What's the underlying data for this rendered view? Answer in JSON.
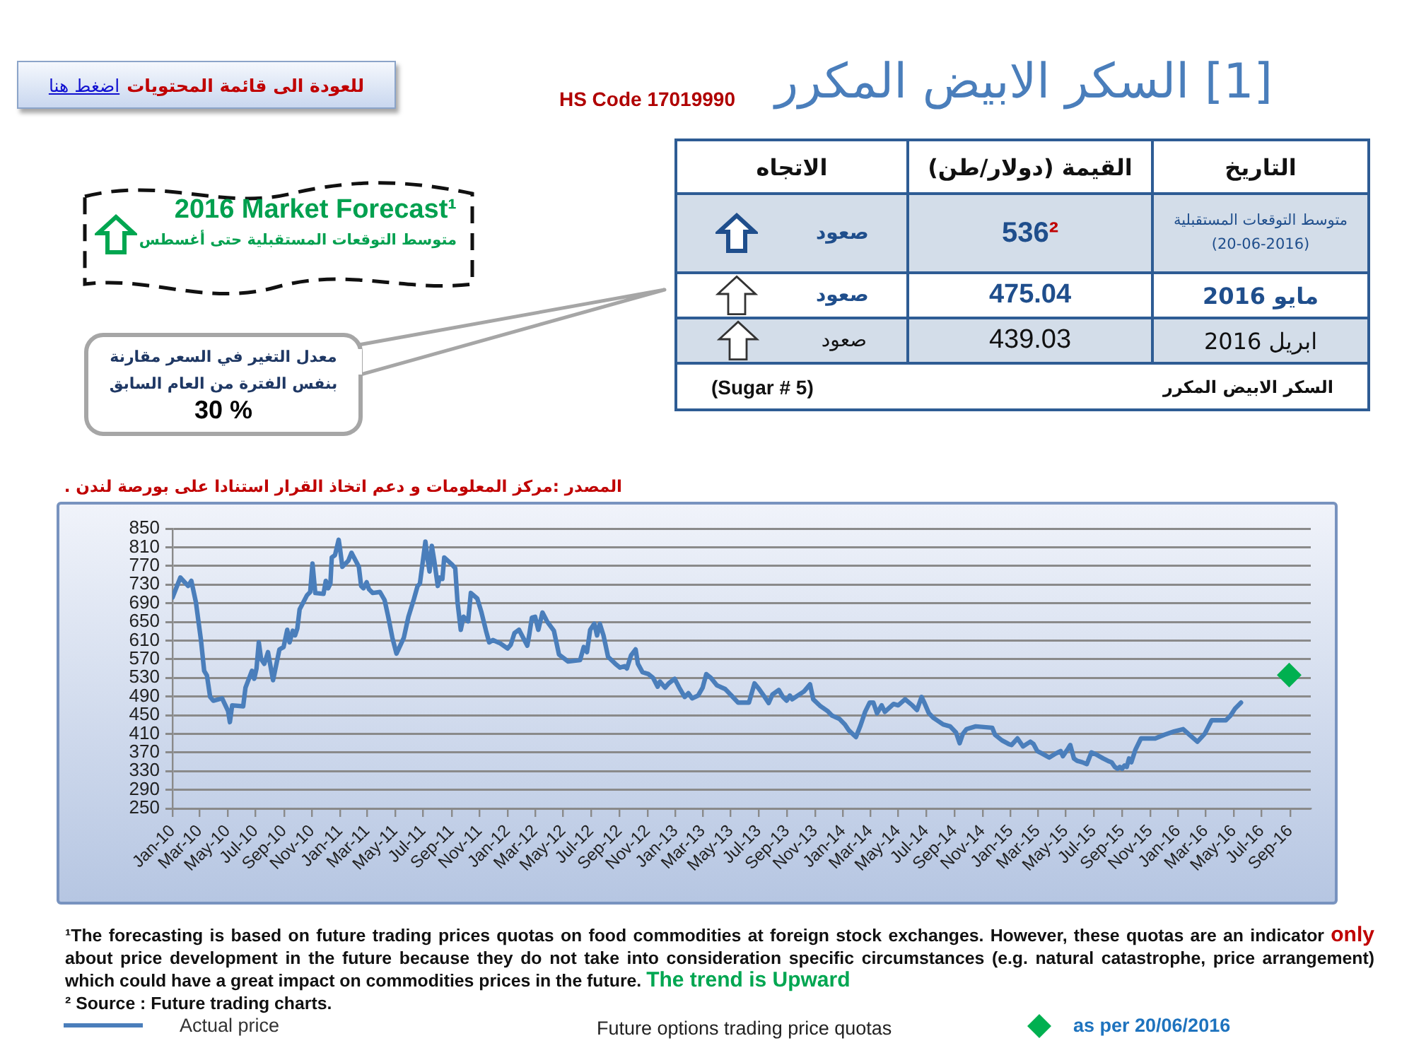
{
  "chart_data": {
    "type": "line",
    "title": "[1] السكر الابيض المكرر",
    "subtitle": "HS Code 17019990",
    "annotations": [
      "للعودة الى قائمة المحتويات",
      "اضغط هنا",
      "2016 Market Forecast¹",
      "متوسط التوقعات المستقبلية حتى أغسطس",
      "معدل التغير في السعر مقارنة\nبنفس الفترة من العام السابق",
      "30 %",
      "التاريخ",
      "القيمة (دولار/طن)",
      "الاتجاه",
      "متوسط التوقعات المستقبلية\n(20-06-2016)",
      "536²",
      "صعود",
      "مايو 2016",
      "475.04",
      "صعود",
      "ابريل 2016",
      "439.03",
      "صعود",
      "السكر الابيض المكرر",
      "(Sugar # 5)",
      "المصدر :مركز المعلومات و دعم اتخاذ القرار استنادا على بورصة لندن .",
      "¹The forecasting is based on future trading prices quotas on food commodities at foreign stock exchanges. However, these quotas are an indicator",
      "only",
      "about price development in the future because they do not take into consideration specific circumstances (e.g. natural catastrophe, price arrangement)",
      "which could have a great impact on commodities prices in the future.",
      "The trend is Upward",
      "² Source : Future trading charts.",
      "Future options trading price quotas"
    ],
    "series": [
      {
        "name": "Actual price",
        "color": "#4a7ebb",
        "x": [
          "2010-01-01",
          "2010-01-18",
          "2010-02-04",
          "2010-02-11",
          "2010-02-21",
          "2010-03-04",
          "2010-03-11",
          "2010-03-17",
          "2010-03-24",
          "2010-03-31",
          "2010-04-19",
          "2010-05-02",
          "2010-05-06",
          "2010-05-11",
          "2010-06-04",
          "2010-06-09",
          "2010-06-23",
          "2010-06-28",
          "2010-07-03",
          "2010-07-08",
          "2010-07-13",
          "2010-07-20",
          "2010-07-28",
          "2010-08-08",
          "2010-08-22",
          "2010-08-31",
          "2010-09-08",
          "2010-09-13",
          "2010-09-20",
          "2010-09-25",
          "2010-09-30",
          "2010-10-05",
          "2010-10-21",
          "2010-10-28",
          "2010-11-02",
          "2010-11-08",
          "2010-11-26",
          "2010-12-01",
          "2010-12-06",
          "2010-12-11",
          "2010-12-14",
          "2010-12-21",
          "2010-12-29",
          "2011-01-01",
          "2011-01-06",
          "2011-01-19",
          "2011-01-26",
          "2011-02-11",
          "2011-02-16",
          "2011-02-21",
          "2011-02-28",
          "2011-03-05",
          "2011-03-13",
          "2011-03-29",
          "2011-04-08",
          "2011-04-16",
          "2011-04-25",
          "2011-05-04",
          "2011-05-20",
          "2011-05-30",
          "2011-06-11",
          "2011-06-19",
          "2011-06-24",
          "2011-07-06",
          "2011-07-11",
          "2011-07-15",
          "2011-07-20",
          "2011-07-25",
          "2011-08-02",
          "2011-08-06",
          "2011-08-12",
          "2011-08-16",
          "2011-09-02",
          "2011-09-09",
          "2011-09-14",
          "2011-09-21",
          "2011-09-27",
          "2011-10-07",
          "2011-10-13",
          "2011-10-27",
          "2011-11-05",
          "2011-11-15",
          "2011-11-22",
          "2011-11-30",
          "2011-12-16",
          "2012-01-01",
          "2012-01-08",
          "2012-01-16",
          "2012-01-26",
          "2012-02-13",
          "2012-02-17",
          "2012-02-23",
          "2012-03-01",
          "2012-03-08",
          "2012-03-17",
          "2012-03-27",
          "2012-04-11",
          "2012-04-22",
          "2012-05-12",
          "2012-06-07",
          "2012-06-15",
          "2012-06-22",
          "2012-06-29",
          "2012-07-08",
          "2012-07-14",
          "2012-07-20",
          "2012-07-28",
          "2012-08-07",
          "2012-08-23",
          "2012-09-02",
          "2012-09-12",
          "2012-09-17",
          "2012-09-26",
          "2012-10-06",
          "2012-10-11",
          "2012-10-21",
          "2012-11-03",
          "2012-11-13",
          "2012-11-23",
          "2012-11-28",
          "2012-12-09",
          "2012-12-17",
          "2012-12-30",
          "2013-01-09",
          "2013-01-21",
          "2013-01-29",
          "2013-02-06",
          "2013-02-19",
          "2013-03-01",
          "2013-03-09",
          "2013-03-19",
          "2013-04-01",
          "2013-04-19",
          "2013-05-01",
          "2013-05-17",
          "2013-06-10",
          "2013-06-22",
          "2013-07-02",
          "2013-07-12",
          "2013-07-23",
          "2013-07-31",
          "2013-08-14",
          "2013-08-23",
          "2013-08-31",
          "2013-09-07",
          "2013-09-12",
          "2013-09-24",
          "2013-10-08",
          "2013-10-21",
          "2013-10-28",
          "2013-11-13",
          "2013-11-28",
          "2013-12-08",
          "2013-12-24",
          "2014-01-05",
          "2014-01-13",
          "2014-01-29",
          "2014-02-08",
          "2014-02-18",
          "2014-02-28",
          "2014-03-08",
          "2014-03-16",
          "2014-03-26",
          "2014-04-02",
          "2014-04-21",
          "2014-05-01",
          "2014-05-16",
          "2014-06-01",
          "2014-06-11",
          "2014-06-21",
          "2014-06-26",
          "2014-07-07",
          "2014-07-17",
          "2014-08-07",
          "2014-08-22",
          "2014-09-04",
          "2014-09-12",
          "2014-09-19",
          "2014-09-27",
          "2014-10-17",
          "2014-11-22",
          "2014-11-28",
          "2014-12-13",
          "2014-12-28",
          "2015-01-03",
          "2015-01-16",
          "2015-01-28",
          "2015-02-05",
          "2015-02-13",
          "2015-02-20",
          "2015-02-28",
          "2015-03-10",
          "2015-03-26",
          "2015-04-10",
          "2015-04-20",
          "2015-04-25",
          "2015-05-06",
          "2015-05-11",
          "2015-05-19",
          "2015-05-26",
          "2015-06-06",
          "2015-06-16",
          "2015-06-26",
          "2015-07-06",
          "2015-07-22",
          "2015-08-01",
          "2015-08-09",
          "2015-08-16",
          "2015-08-22",
          "2015-08-27",
          "2015-09-01",
          "2015-09-06",
          "2015-09-11",
          "2015-09-16",
          "2015-09-21",
          "2015-09-30",
          "2015-10-12",
          "2015-11-12",
          "2015-12-02",
          "2015-12-23",
          "2016-01-12",
          "2016-01-28",
          "2016-02-12",
          "2016-02-28",
          "2016-03-14",
          "2016-04-14",
          "2016-04-24",
          "2016-05-04",
          "2016-05-17"
        ],
        "values": [
          702,
          745,
          727,
          738,
          692,
          611,
          545,
          535,
          489,
          481,
          486,
          459,
          435,
          471,
          469,
          509,
          545,
          528,
          550,
          606,
          570,
          560,
          585,
          525,
          591,
          596,
          633,
          606,
          631,
          621,
          636,
          677,
          707,
          714,
          775,
          712,
          710,
          738,
          722,
          732,
          788,
          793,
          826,
          807,
          768,
          781,
          798,
          768,
          727,
          722,
          735,
          720,
          712,
          714,
          697,
          661,
          616,
          582,
          616,
          661,
          699,
          727,
          732,
          822,
          783,
          758,
          813,
          783,
          727,
          745,
          742,
          788,
          773,
          765,
          692,
          633,
          661,
          651,
          712,
          700,
          671,
          631,
          606,
          611,
          604,
          593,
          601,
          626,
          633,
          599,
          621,
          659,
          661,
          633,
          670,
          651,
          631,
          580,
          565,
          568,
          596,
          585,
          633,
          646,
          621,
          646,
          621,
          575,
          560,
          552,
          555,
          550,
          578,
          591,
          560,
          542,
          538,
          530,
          511,
          522,
          509,
          518,
          528,
          509,
          489,
          497,
          486,
          492,
          509,
          538,
          530,
          514,
          506,
          494,
          477,
          477,
          518,
          506,
          492,
          476,
          494,
          504,
          489,
          481,
          492,
          484,
          492,
          501,
          516,
          484,
          469,
          459,
          449,
          442,
          430,
          418,
          403,
          428,
          457,
          477,
          477,
          454,
          471,
          457,
          474,
          471,
          484,
          471,
          461,
          489,
          479,
          454,
          444,
          430,
          426,
          413,
          390,
          410,
          420,
          426,
          423,
          408,
          396,
          388,
          386,
          400,
          383,
          388,
          393,
          388,
          373,
          368,
          359,
          368,
          373,
          362,
          378,
          386,
          357,
          352,
          349,
          345,
          370,
          366,
          357,
          352,
          349,
          339,
          335,
          339,
          335,
          342,
          339,
          357,
          349,
          376,
          400,
          400,
          408,
          415,
          420,
          406,
          393,
          410,
          439,
          439,
          449,
          464,
          477
        ]
      },
      {
        "name": "as per 20/06/2016",
        "type": "scatter",
        "color": "#00b050",
        "marker": "diamond",
        "x": [
          "2016-08-30"
        ],
        "values": [
          536
        ]
      }
    ],
    "xlim": [
      "2010-01-01",
      "2016-10-16"
    ],
    "xticks": [
      {
        "value": "2010-01-01",
        "label": "Jan-10"
      },
      {
        "value": "2010-03-01",
        "label": "Mar-10"
      },
      {
        "value": "2010-05-01",
        "label": "May-10"
      },
      {
        "value": "2010-07-01",
        "label": "Jul-10"
      },
      {
        "value": "2010-09-01",
        "label": "Sep-10"
      },
      {
        "value": "2010-11-01",
        "label": "Nov-10"
      },
      {
        "value": "2011-01-01",
        "label": "Jan-11"
      },
      {
        "value": "2011-03-01",
        "label": "Mar-11"
      },
      {
        "value": "2011-05-01",
        "label": "May-11"
      },
      {
        "value": "2011-07-01",
        "label": "Jul-11"
      },
      {
        "value": "2011-09-01",
        "label": "Sep-11"
      },
      {
        "value": "2011-11-01",
        "label": "Nov-11"
      },
      {
        "value": "2012-01-01",
        "label": "Jan-12"
      },
      {
        "value": "2012-03-01",
        "label": "Mar-12"
      },
      {
        "value": "2012-05-01",
        "label": "May-12"
      },
      {
        "value": "2012-07-01",
        "label": "Jul-12"
      },
      {
        "value": "2012-09-01",
        "label": "Sep-12"
      },
      {
        "value": "2012-11-01",
        "label": "Nov-12"
      },
      {
        "value": "2013-01-01",
        "label": "Jan-13"
      },
      {
        "value": "2013-03-01",
        "label": "Mar-13"
      },
      {
        "value": "2013-05-01",
        "label": "May-13"
      },
      {
        "value": "2013-07-01",
        "label": "Jul-13"
      },
      {
        "value": "2013-09-01",
        "label": "Sep-13"
      },
      {
        "value": "2013-11-01",
        "label": "Nov-13"
      },
      {
        "value": "2014-01-01",
        "label": "Jan-14"
      },
      {
        "value": "2014-03-01",
        "label": "Mar-14"
      },
      {
        "value": "2014-05-01",
        "label": "May-14"
      },
      {
        "value": "2014-07-01",
        "label": "Jul-14"
      },
      {
        "value": "2014-09-01",
        "label": "Sep-14"
      },
      {
        "value": "2014-11-01",
        "label": "Nov-14"
      },
      {
        "value": "2015-01-01",
        "label": "Jan-15"
      },
      {
        "value": "2015-03-01",
        "label": "Mar-15"
      },
      {
        "value": "2015-05-01",
        "label": "May-15"
      },
      {
        "value": "2015-07-01",
        "label": "Jul-15"
      },
      {
        "value": "2015-09-01",
        "label": "Sep-15"
      },
      {
        "value": "2015-11-01",
        "label": "Nov-15"
      },
      {
        "value": "2016-01-01",
        "label": "Jan-16"
      },
      {
        "value": "2016-03-01",
        "label": "Mar-16"
      },
      {
        "value": "2016-05-01",
        "label": "May-16"
      },
      {
        "value": "2016-07-01",
        "label": "Jul-16"
      },
      {
        "value": "2016-09-01",
        "label": "Sep-16"
      }
    ],
    "ylim": [
      250,
      850
    ],
    "yticks": [
      250,
      290,
      330,
      370,
      410,
      450,
      490,
      530,
      570,
      610,
      650,
      690,
      730,
      770,
      810,
      850
    ],
    "grid": "y",
    "legend": "bottom"
  }
}
